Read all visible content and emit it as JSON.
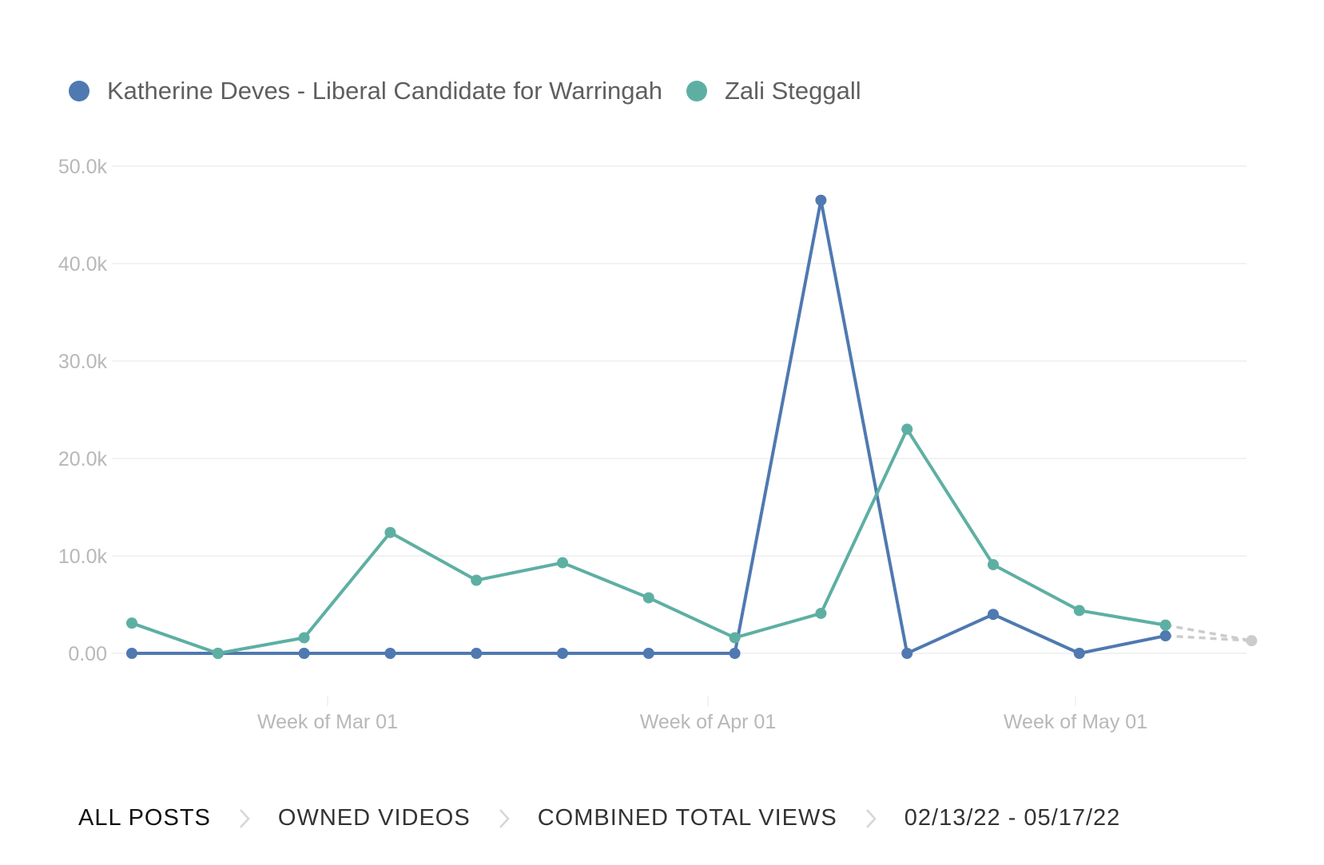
{
  "chart_data": {
    "type": "line",
    "x": [
      "02/13/22",
      "02/20/22",
      "02/27/22",
      "03/06/22",
      "03/13/22",
      "03/20/22",
      "03/27/22",
      "04/03/22",
      "04/10/22",
      "04/17/22",
      "04/24/22",
      "05/01/22",
      "05/08/22",
      "05/15/22"
    ],
    "series": [
      {
        "name": "Katherine Deves - Liberal Candidate for Warringah",
        "color": "#4f79b0",
        "values": [
          0,
          0,
          0,
          0,
          0,
          0,
          0,
          0,
          46500,
          0,
          4000,
          0,
          1800,
          null
        ]
      },
      {
        "name": "Zali Steggall",
        "color": "#5eafa3",
        "values": [
          3100,
          0,
          1600,
          12400,
          7500,
          9300,
          5700,
          1600,
          4100,
          23000,
          9100,
          4400,
          2900,
          null
        ]
      }
    ],
    "partial_period": {
      "values": [
        1300
      ],
      "color": "#cccccc"
    },
    "ylim": [
      0,
      50000
    ],
    "yticks": [
      "0.00",
      "10.0k",
      "20.0k",
      "30.0k",
      "40.0k",
      "50.0k"
    ],
    "xtick_labels": [
      "Week of Mar 01",
      "Week of Apr 01",
      "Week of May 01"
    ],
    "xlabel": "",
    "ylabel": "",
    "grid": true,
    "legend_position": "top-left"
  },
  "breadcrumb": {
    "items": [
      "ALL POSTS",
      "OWNED VIDEOS",
      "COMBINED TOTAL VIEWS",
      "02/13/22 - 05/17/22"
    ],
    "separator_icon": "chevron-right-icon"
  }
}
